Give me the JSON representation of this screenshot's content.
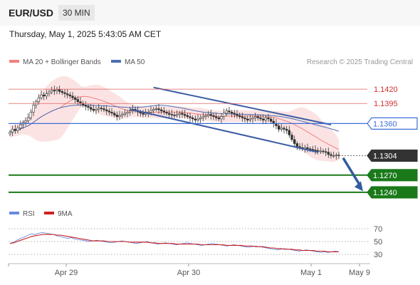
{
  "header": {
    "symbol": "EUR/USD",
    "timeframe": "30 MIN",
    "datetime": "Thursday, May 1, 2025 5:43:05 AM CET"
  },
  "legend": {
    "ma20_label": "MA 20 + Bollinger Bands",
    "ma50_label": "MA 50",
    "copyright": "Research © 2025 Trading Central",
    "rsi_label": "RSI",
    "ma9_label": "9MA"
  },
  "colors": {
    "ma20": "#f08080",
    "bands_fill": "#fcdede",
    "ma50": "#4a6fb5",
    "trend_lines": "#3b5ba5",
    "support": "#1a7a1a",
    "resistance": "#e06060",
    "pivot": "#3c6fd6",
    "current": "#333333",
    "arrow": "#2f5d9e",
    "candle_up": "#ffffff",
    "candle_down": "#333333",
    "rsi_line": "#6a8ae0",
    "rsi_ma": "#cc2222"
  },
  "chart_data": [
    {
      "type": "candlestick",
      "title": "",
      "ylim": [
        1.1225,
        1.1445
      ],
      "x_labels": [
        "Apr 29",
        "Apr 30",
        "May 1",
        "May 9"
      ],
      "price_levels": [
        {
          "value": 1.142,
          "label": "1.1420",
          "kind": "resistance"
        },
        {
          "value": 1.1395,
          "label": "1.1395",
          "kind": "resistance"
        },
        {
          "value": 1.136,
          "label": "1.1360",
          "kind": "pivot"
        },
        {
          "value": 1.1304,
          "label": "1.1304",
          "kind": "current"
        },
        {
          "value": 1.127,
          "label": "1.1270",
          "kind": "support"
        },
        {
          "value": 1.124,
          "label": "1.1240",
          "kind": "support"
        }
      ],
      "close": [
        1.1345,
        1.135,
        1.1348,
        1.1352,
        1.1358,
        1.1362,
        1.1365,
        1.137,
        1.138,
        1.1392,
        1.1398,
        1.1405,
        1.141,
        1.1408,
        1.1412,
        1.1415,
        1.1418,
        1.1417,
        1.1419,
        1.1416,
        1.1414,
        1.1412,
        1.141,
        1.1408,
        1.1405,
        1.1402,
        1.1398,
        1.1395,
        1.1392,
        1.139,
        1.1388,
        1.1385,
        1.1383,
        1.1385,
        1.1387,
        1.1386,
        1.1384,
        1.1382,
        1.138,
        1.1378,
        1.1375,
        1.1372,
        1.1374,
        1.1376,
        1.1378,
        1.138,
        1.1382,
        1.1385,
        1.1383,
        1.138,
        1.1378,
        1.1376,
        1.1378,
        1.138,
        1.1383,
        1.1385,
        1.1386,
        1.1384,
        1.1382,
        1.138,
        1.1378,
        1.1376,
        1.1375,
        1.1374,
        1.1376,
        1.1378,
        1.1376,
        1.1374,
        1.1372,
        1.137,
        1.1368,
        1.1366,
        1.1368,
        1.137,
        1.1372,
        1.1374,
        1.1376,
        1.1374,
        1.1372,
        1.137,
        1.1368,
        1.1372,
        1.1378,
        1.1382,
        1.138,
        1.1378,
        1.1376,
        1.1374,
        1.1372,
        1.137,
        1.1368,
        1.1366,
        1.1368,
        1.137,
        1.1372,
        1.137,
        1.1368,
        1.1366,
        1.137,
        1.1368,
        1.1364,
        1.136,
        1.1356,
        1.135,
        1.1352,
        1.135,
        1.1348,
        1.134,
        1.1332,
        1.1325,
        1.132,
        1.1318,
        1.1316,
        1.1318,
        1.1316,
        1.1315,
        1.1314,
        1.1313,
        1.1312,
        1.1312,
        1.1311,
        1.131,
        1.1306,
        1.1304,
        1.1304,
        1.1305,
        1.1304
      ]
    },
    {
      "type": "line",
      "title": "",
      "ylim": [
        20,
        80
      ],
      "y_ticks": [
        30,
        50,
        70
      ],
      "series": [
        {
          "name": "RSI",
          "values": [
            47,
            49,
            52,
            55,
            57,
            60,
            62,
            61,
            63,
            64,
            63,
            62,
            61,
            59,
            58,
            56,
            55,
            56,
            54,
            53,
            52,
            51,
            50,
            51,
            52,
            51,
            50,
            49,
            48,
            49,
            50,
            51,
            50,
            49,
            48,
            47,
            48,
            49,
            50,
            48,
            47,
            46,
            47,
            48,
            47,
            46,
            45,
            46,
            47,
            48,
            47,
            46,
            45,
            44,
            45,
            46,
            47,
            46,
            45,
            44,
            43,
            44,
            45,
            44,
            43,
            42,
            41,
            42,
            43,
            42,
            41,
            40,
            39,
            38,
            37,
            38,
            39,
            38,
            37,
            36,
            35,
            36,
            37,
            36,
            35,
            34,
            33,
            34,
            33,
            34,
            35,
            34
          ]
        },
        {
          "name": "9MA",
          "values": [
            47,
            48,
            50,
            52,
            54,
            56,
            58,
            59,
            60,
            61,
            61,
            61,
            61,
            60,
            60,
            59,
            58,
            57,
            56,
            55,
            54,
            53,
            52,
            51,
            51,
            51,
            51,
            50,
            50,
            50,
            50,
            50,
            50,
            49,
            49,
            49,
            49,
            49,
            49,
            48,
            48,
            47,
            47,
            47,
            47,
            47,
            46,
            46,
            46,
            46,
            46,
            46,
            46,
            45,
            45,
            45,
            45,
            45,
            45,
            45,
            44,
            44,
            44,
            44,
            44,
            43,
            43,
            43,
            42,
            42,
            42,
            41,
            40,
            40,
            39,
            39,
            38,
            38,
            38,
            37,
            37,
            36,
            36,
            36,
            36,
            35,
            35,
            35,
            34,
            34,
            34,
            34
          ]
        }
      ]
    }
  ]
}
